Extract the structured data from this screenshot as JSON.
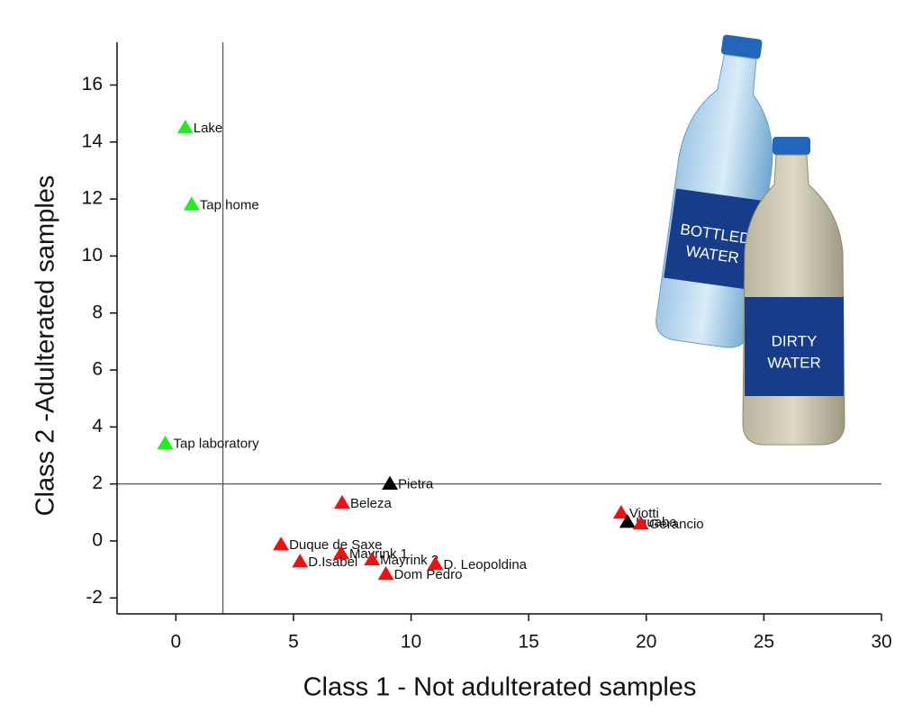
{
  "chart_data": {
    "type": "scatter",
    "x_label": "Class 1 - Not adulterated samples",
    "y_label": "Class 2 -Adulterated samples",
    "labels": [
      "Lake",
      "Tap home",
      "Tap laboratory",
      "Pietra",
      "Beleza",
      "Viotti",
      "Iguaba",
      "Gerancio",
      "Duque de Saxe",
      "Mayrink 1",
      "D.Isabel",
      "Mayrink 3",
      "D. Leopoldina",
      "Dom Pedro"
    ],
    "x": [
      0.4,
      0.67,
      -0.45,
      9.1,
      7.07,
      18.93,
      19.2,
      19.77,
      4.47,
      7.03,
      5.28,
      8.34,
      11.03,
      8.93
    ],
    "y": [
      14.5,
      11.8,
      3.42,
      2.0,
      1.33,
      0.98,
      0.66,
      0.6,
      -0.13,
      -0.44,
      -0.73,
      -0.66,
      -0.82,
      -1.17
    ],
    "colors": [
      "#22ee22",
      "#22ee22",
      "#22ee22",
      "#000000",
      "#ee1111",
      "#ee1111",
      "#000000",
      "#ee1111",
      "#ee1111",
      "#ee1111",
      "#ee1111",
      "#ee1111",
      "#ee1111",
      "#ee1111"
    ],
    "xlim": [
      -2.5,
      30
    ],
    "ylim": [
      -2.56,
      17.5
    ],
    "xticks": [
      0,
      5,
      10,
      15,
      20,
      25,
      30
    ],
    "yticks": [
      -2,
      0,
      2,
      4,
      6,
      8,
      10,
      12,
      14,
      16
    ],
    "reference_lines": {
      "x": 2,
      "y": 2
    },
    "illustrations": [
      {
        "text": [
          "BOTTLED",
          "WATER"
        ]
      },
      {
        "text": [
          "DIRTY",
          "WATER"
        ]
      }
    ]
  }
}
